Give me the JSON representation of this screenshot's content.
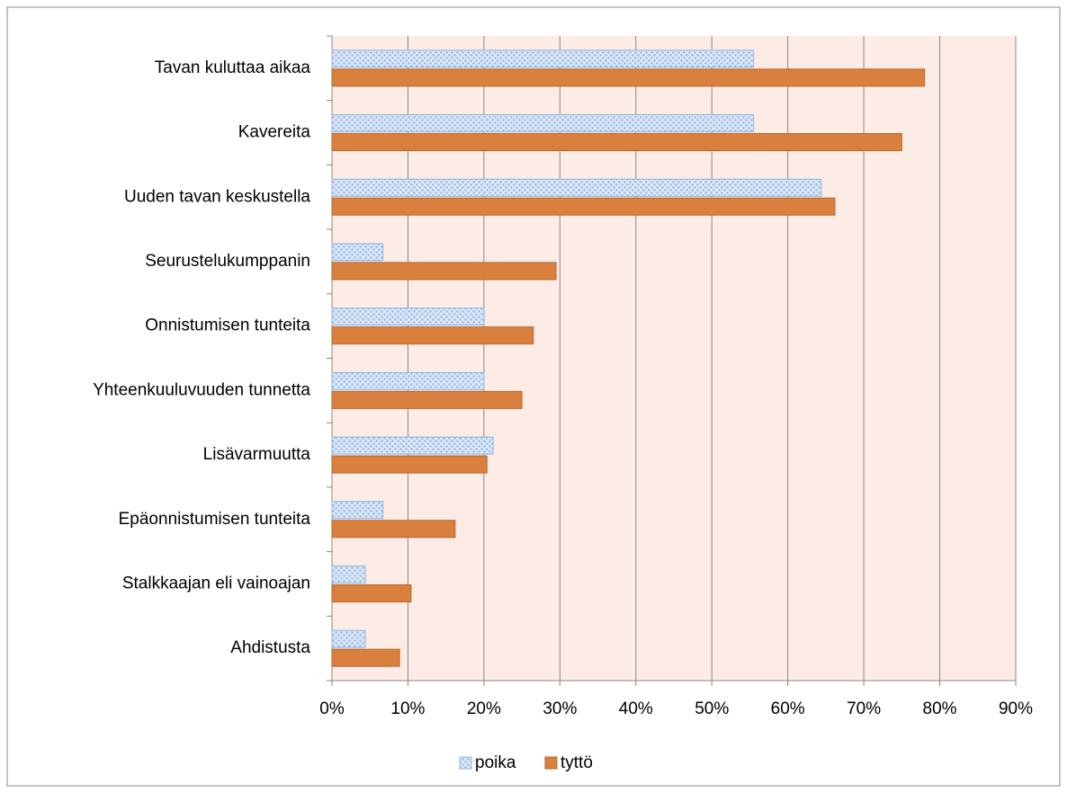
{
  "chart_data": {
    "type": "hbar",
    "categories": [
      "Tavan kuluttaa aikaa",
      "Kavereita",
      "Uuden tavan keskustella",
      "Seurustelukumppanin",
      "Onnistumisen tunteita",
      "Yhteenkuuluvuuden tunnetta",
      "Lisävarmuutta",
      "Epäonnistumisen tunteita",
      "Stalkkaajan eli vainoajan",
      "Ahdistusta"
    ],
    "series": [
      {
        "name": "poika",
        "color": "#c6d9f1",
        "values": [
          55.5,
          55.5,
          64.4,
          6.7,
          20,
          20,
          21.2,
          6.7,
          4.4,
          4.4
        ]
      },
      {
        "name": "tyttö",
        "color": "#d9803e",
        "values": [
          78,
          75,
          66.2,
          29.5,
          26.5,
          25,
          20.4,
          16.2,
          10.4,
          8.9
        ]
      }
    ],
    "xlim": [
      0,
      90
    ],
    "xticks": [
      {
        "value": 0,
        "label": "0%"
      },
      {
        "value": 10,
        "label": "10%"
      },
      {
        "value": 20,
        "label": "20%"
      },
      {
        "value": 30,
        "label": "30%"
      },
      {
        "value": 40,
        "label": "40%"
      },
      {
        "value": 50,
        "label": "50%"
      },
      {
        "value": 60,
        "label": "60%"
      },
      {
        "value": 70,
        "label": "70%"
      },
      {
        "value": 80,
        "label": "80%"
      },
      {
        "value": 90,
        "label": "90%"
      }
    ],
    "grid": true,
    "legend": "bottom"
  }
}
